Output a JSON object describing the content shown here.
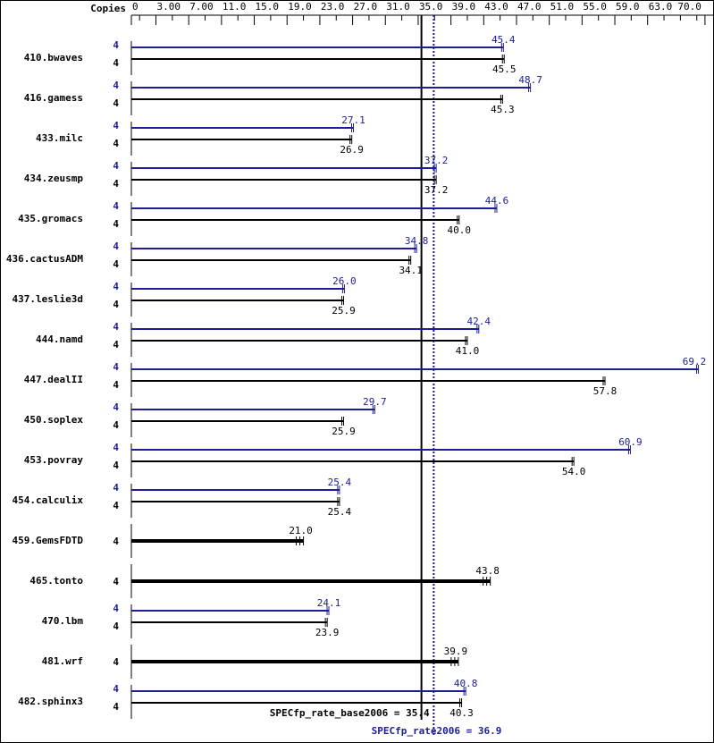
{
  "copies_header": "Copies",
  "chart_data": {
    "type": "bar",
    "orientation": "horizontal",
    "xlim": [
      0,
      70
    ],
    "x_tick_labels": [
      "0",
      "3.00",
      "7.00",
      "11.0",
      "15.0",
      "19.0",
      "23.0",
      "27.0",
      "31.0",
      "35.0",
      "39.0",
      "43.0",
      "47.0",
      "51.0",
      "55.0",
      "59.0",
      "63.0",
      "70.0"
    ],
    "x_tick_values": [
      0,
      3,
      7,
      11,
      15,
      19,
      23,
      27,
      31,
      35,
      39,
      43,
      47,
      51,
      55,
      59,
      63,
      70
    ],
    "colors": {
      "peak": "#1c1c96",
      "base": "#000000"
    },
    "benchmarks": [
      {
        "name": "410.bwaves",
        "peak_copies": "4",
        "peak": 45.4,
        "peak_label": "45.4",
        "base_copies": "4",
        "base": 45.5,
        "base_label": "45.5"
      },
      {
        "name": "416.gamess",
        "peak_copies": "4",
        "peak": 48.7,
        "peak_label": "48.7",
        "base_copies": "4",
        "base": 45.3,
        "base_label": "45.3"
      },
      {
        "name": "433.milc",
        "peak_copies": "4",
        "peak": 27.1,
        "peak_label": "27.1",
        "base_copies": "4",
        "base": 26.9,
        "base_label": "26.9"
      },
      {
        "name": "434.zeusmp",
        "peak_copies": "4",
        "peak": 37.2,
        "peak_label": "37.2",
        "base_copies": "4",
        "base": 37.2,
        "base_label": "37.2"
      },
      {
        "name": "435.gromacs",
        "peak_copies": "4",
        "peak": 44.6,
        "peak_label": "44.6",
        "base_copies": "4",
        "base": 40.0,
        "base_label": "40.0"
      },
      {
        "name": "436.cactusADM",
        "peak_copies": "4",
        "peak": 34.8,
        "peak_label": "34.8",
        "base_copies": "4",
        "base": 34.1,
        "base_label": "34.1"
      },
      {
        "name": "437.leslie3d",
        "peak_copies": "4",
        "peak": 26.0,
        "peak_label": "26.0",
        "base_copies": "4",
        "base": 25.9,
        "base_label": "25.9"
      },
      {
        "name": "444.namd",
        "peak_copies": "4",
        "peak": 42.4,
        "peak_label": "42.4",
        "base_copies": "4",
        "base": 41.0,
        "base_label": "41.0"
      },
      {
        "name": "447.dealII",
        "peak_copies": "4",
        "peak": 69.2,
        "peak_label": "69.2",
        "base_copies": "4",
        "base": 57.8,
        "base_label": "57.8"
      },
      {
        "name": "450.soplex",
        "peak_copies": "4",
        "peak": 29.7,
        "peak_label": "29.7",
        "base_copies": "4",
        "base": 25.9,
        "base_label": "25.9"
      },
      {
        "name": "453.povray",
        "peak_copies": "4",
        "peak": 60.9,
        "peak_label": "60.9",
        "base_copies": "4",
        "base": 54.0,
        "base_label": "54.0"
      },
      {
        "name": "454.calculix",
        "peak_copies": "4",
        "peak": 25.4,
        "peak_label": "25.4",
        "base_copies": "4",
        "base": 25.4,
        "base_label": "25.4"
      },
      {
        "name": "459.GemsFDTD",
        "combined": true,
        "copies": "4",
        "value": 21.0,
        "label": "21.0"
      },
      {
        "name": "465.tonto",
        "combined": true,
        "copies": "4",
        "value": 43.8,
        "label": "43.8"
      },
      {
        "name": "470.lbm",
        "peak_copies": "4",
        "peak": 24.1,
        "peak_label": "24.1",
        "base_copies": "4",
        "base": 23.9,
        "base_label": "23.9"
      },
      {
        "name": "481.wrf",
        "combined": true,
        "copies": "4",
        "value": 39.9,
        "label": "39.9"
      },
      {
        "name": "482.sphinx3",
        "peak_copies": "4",
        "peak": 40.8,
        "peak_label": "40.8",
        "base_copies": "4",
        "base": 40.3,
        "base_label": "40.3"
      }
    ],
    "base_metric": {
      "label": "SPECfp_rate_base2006 = 35.4",
      "value": 35.4
    },
    "peak_metric": {
      "label": "SPECfp_rate2006 = 36.9",
      "value": 36.9
    }
  }
}
